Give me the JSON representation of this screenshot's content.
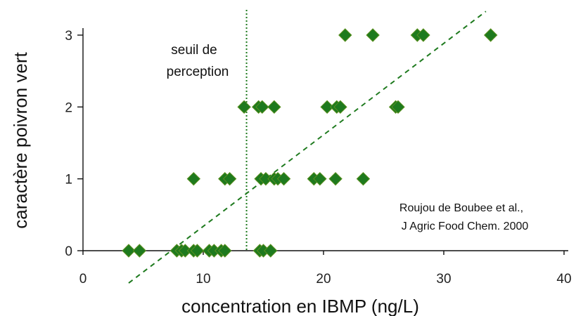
{
  "chart_data": {
    "type": "scatter",
    "xlabel": "concentration en IBMP (ng/L)",
    "ylabel": "caractère poivron vert",
    "xlim": [
      0,
      40
    ],
    "ylim": [
      0,
      3
    ],
    "xticks": [
      "0",
      "10",
      "20",
      "30",
      "40"
    ],
    "yticks": [
      "0",
      "1",
      "2",
      "3"
    ],
    "grid": false,
    "marker": "diamond",
    "color": "#1e7a1e",
    "points": [
      {
        "x": 3.8,
        "y": 0
      },
      {
        "x": 4.7,
        "y": 0
      },
      {
        "x": 7.8,
        "y": 0
      },
      {
        "x": 8.2,
        "y": 0
      },
      {
        "x": 8.5,
        "y": 0
      },
      {
        "x": 9.2,
        "y": 0
      },
      {
        "x": 9.5,
        "y": 0
      },
      {
        "x": 10.5,
        "y": 0
      },
      {
        "x": 10.9,
        "y": 0
      },
      {
        "x": 11.5,
        "y": 0
      },
      {
        "x": 11.8,
        "y": 0
      },
      {
        "x": 14.7,
        "y": 0
      },
      {
        "x": 15.0,
        "y": 0
      },
      {
        "x": 15.6,
        "y": 0
      },
      {
        "x": 9.2,
        "y": 1
      },
      {
        "x": 11.8,
        "y": 1
      },
      {
        "x": 12.2,
        "y": 1
      },
      {
        "x": 14.8,
        "y": 1
      },
      {
        "x": 15.2,
        "y": 1
      },
      {
        "x": 15.9,
        "y": 1
      },
      {
        "x": 16.2,
        "y": 1
      },
      {
        "x": 16.7,
        "y": 1
      },
      {
        "x": 19.2,
        "y": 1
      },
      {
        "x": 19.7,
        "y": 1
      },
      {
        "x": 21.0,
        "y": 1
      },
      {
        "x": 23.3,
        "y": 1
      },
      {
        "x": 13.4,
        "y": 2
      },
      {
        "x": 14.6,
        "y": 2
      },
      {
        "x": 14.9,
        "y": 2
      },
      {
        "x": 15.9,
        "y": 2
      },
      {
        "x": 20.3,
        "y": 2
      },
      {
        "x": 21.1,
        "y": 2
      },
      {
        "x": 21.4,
        "y": 2
      },
      {
        "x": 26.0,
        "y": 2
      },
      {
        "x": 26.2,
        "y": 2
      },
      {
        "x": 21.8,
        "y": 3
      },
      {
        "x": 24.1,
        "y": 3
      },
      {
        "x": 27.8,
        "y": 3
      },
      {
        "x": 28.3,
        "y": 3
      },
      {
        "x": 33.9,
        "y": 3
      }
    ],
    "trendline": {
      "style": "dashed",
      "x": [
        3.8,
        33.5
      ],
      "y": [
        -0.45,
        3.33
      ]
    },
    "threshold": {
      "x": 13.6,
      "style": "dotted",
      "label_lines": [
        "seuil de",
        "perception"
      ]
    },
    "annotation": {
      "lines": [
        "Roujou de Boubee et al.,",
        "J Agric Food Chem. 2000"
      ]
    }
  }
}
